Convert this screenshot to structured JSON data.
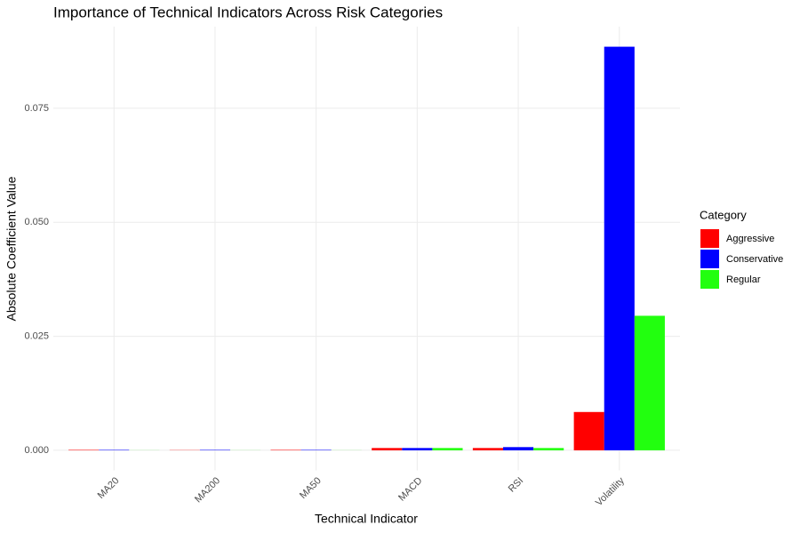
{
  "chart_data": {
    "type": "bar",
    "title": "Importance of Technical Indicators Across Risk Categories",
    "x_label": "Technical Indicator",
    "y_label": "Absolute Coefficient Value",
    "legend_title": "Category",
    "legend_position": "right",
    "grid": true,
    "categories": [
      "MA20",
      "MA200",
      "MA50",
      "MACD",
      "RSI",
      "Volatility"
    ],
    "series": [
      {
        "name": "Aggressive",
        "color": "#ff0000",
        "values": [
          0.0001,
          5e-05,
          0.0001,
          0.0005,
          0.0005,
          0.0084
        ]
      },
      {
        "name": "Conservative",
        "color": "#0000ff",
        "values": [
          0.0001,
          0.0001,
          0.0001,
          0.0005,
          0.0007,
          0.0885
        ]
      },
      {
        "name": "Regular",
        "color": "#22ff0f",
        "values": [
          2e-05,
          2e-05,
          2e-05,
          0.0005,
          0.0005,
          0.0295
        ]
      }
    ],
    "ylim": [
      -0.0044,
      0.0929
    ],
    "yticks": [
      {
        "value": 0,
        "label": "0.000"
      },
      {
        "value": 0.025,
        "label": "0.025"
      },
      {
        "value": 0.05,
        "label": "0.050"
      },
      {
        "value": 0.075,
        "label": "0.075"
      }
    ]
  }
}
